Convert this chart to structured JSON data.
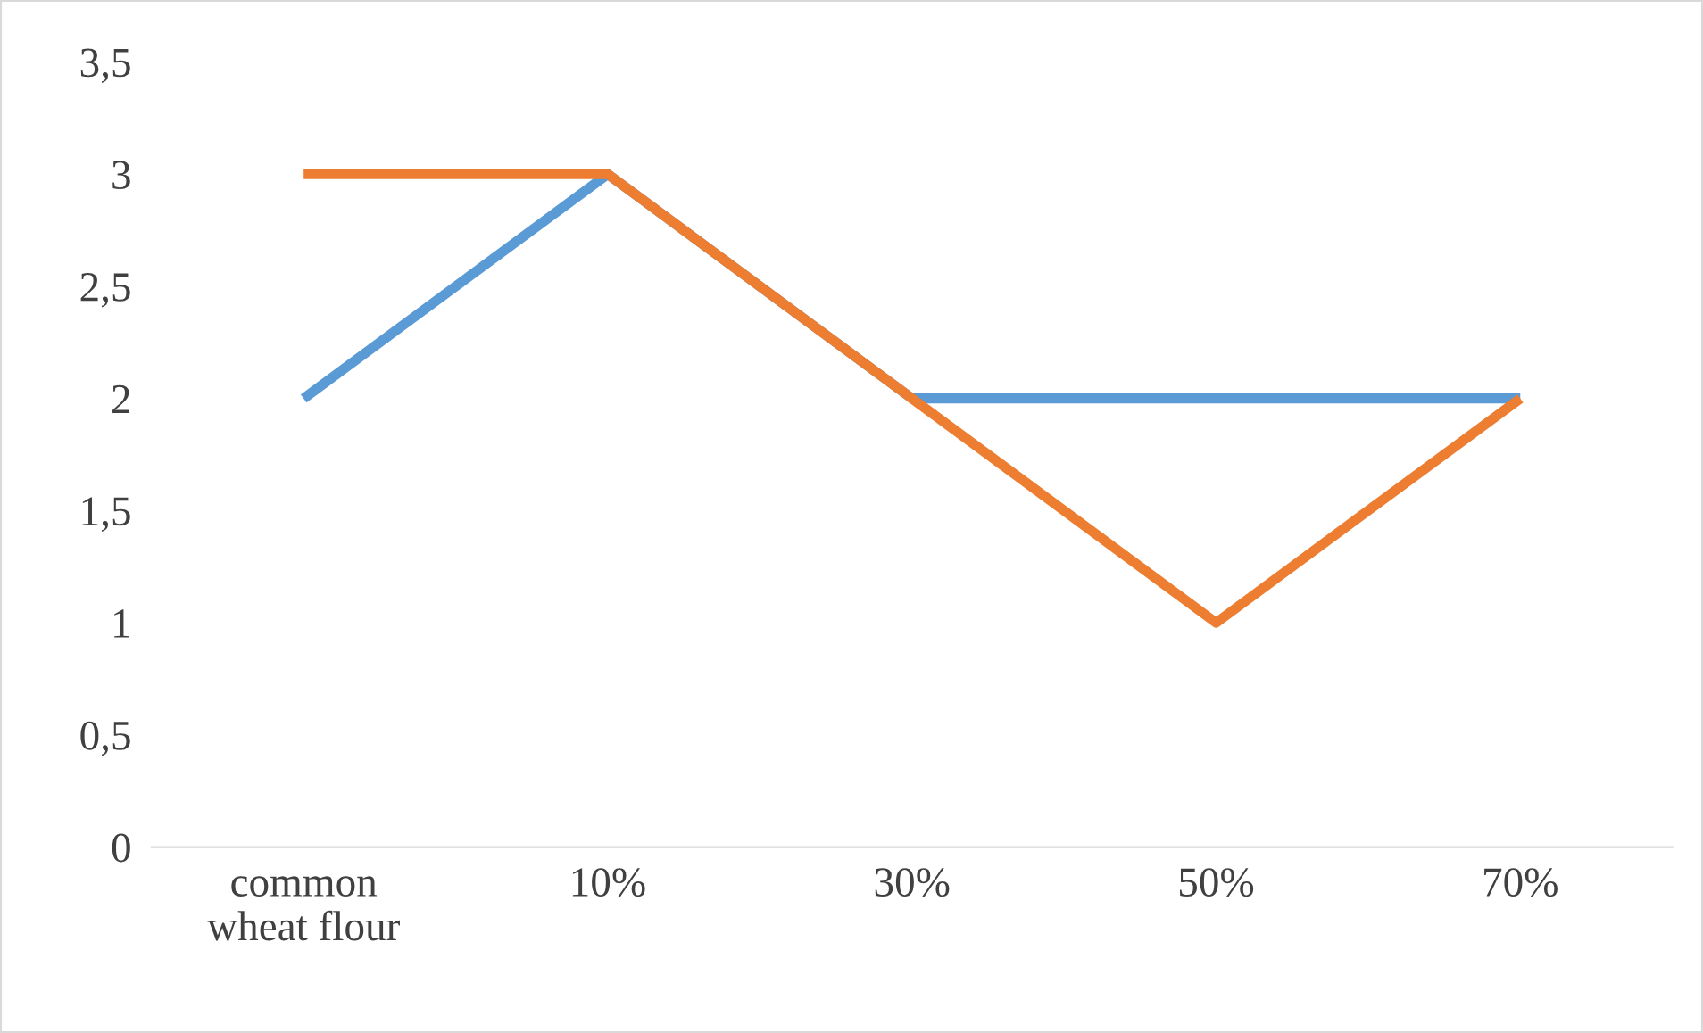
{
  "chart_data": {
    "type": "line",
    "categories": [
      "common\nwheat flour",
      "10%",
      "30%",
      "50%",
      "70%"
    ],
    "series": [
      {
        "color": "#5b9bd5",
        "values": [
          2,
          3,
          2,
          2,
          2
        ]
      },
      {
        "color": "#ed7d31",
        "values": [
          3,
          3,
          2,
          1,
          2
        ]
      }
    ],
    "ylim": [
      0,
      3.5
    ],
    "yticks": [
      0,
      {
        "value": 0.5,
        "label": "0,5"
      },
      1,
      {
        "value": 1.5,
        "label": "1,5"
      },
      2,
      {
        "value": 2.5,
        "label": "2,5"
      },
      3,
      {
        "value": 3.5,
        "label": "3,5"
      }
    ],
    "grid": false,
    "marker": "none",
    "line_style": "solid"
  }
}
